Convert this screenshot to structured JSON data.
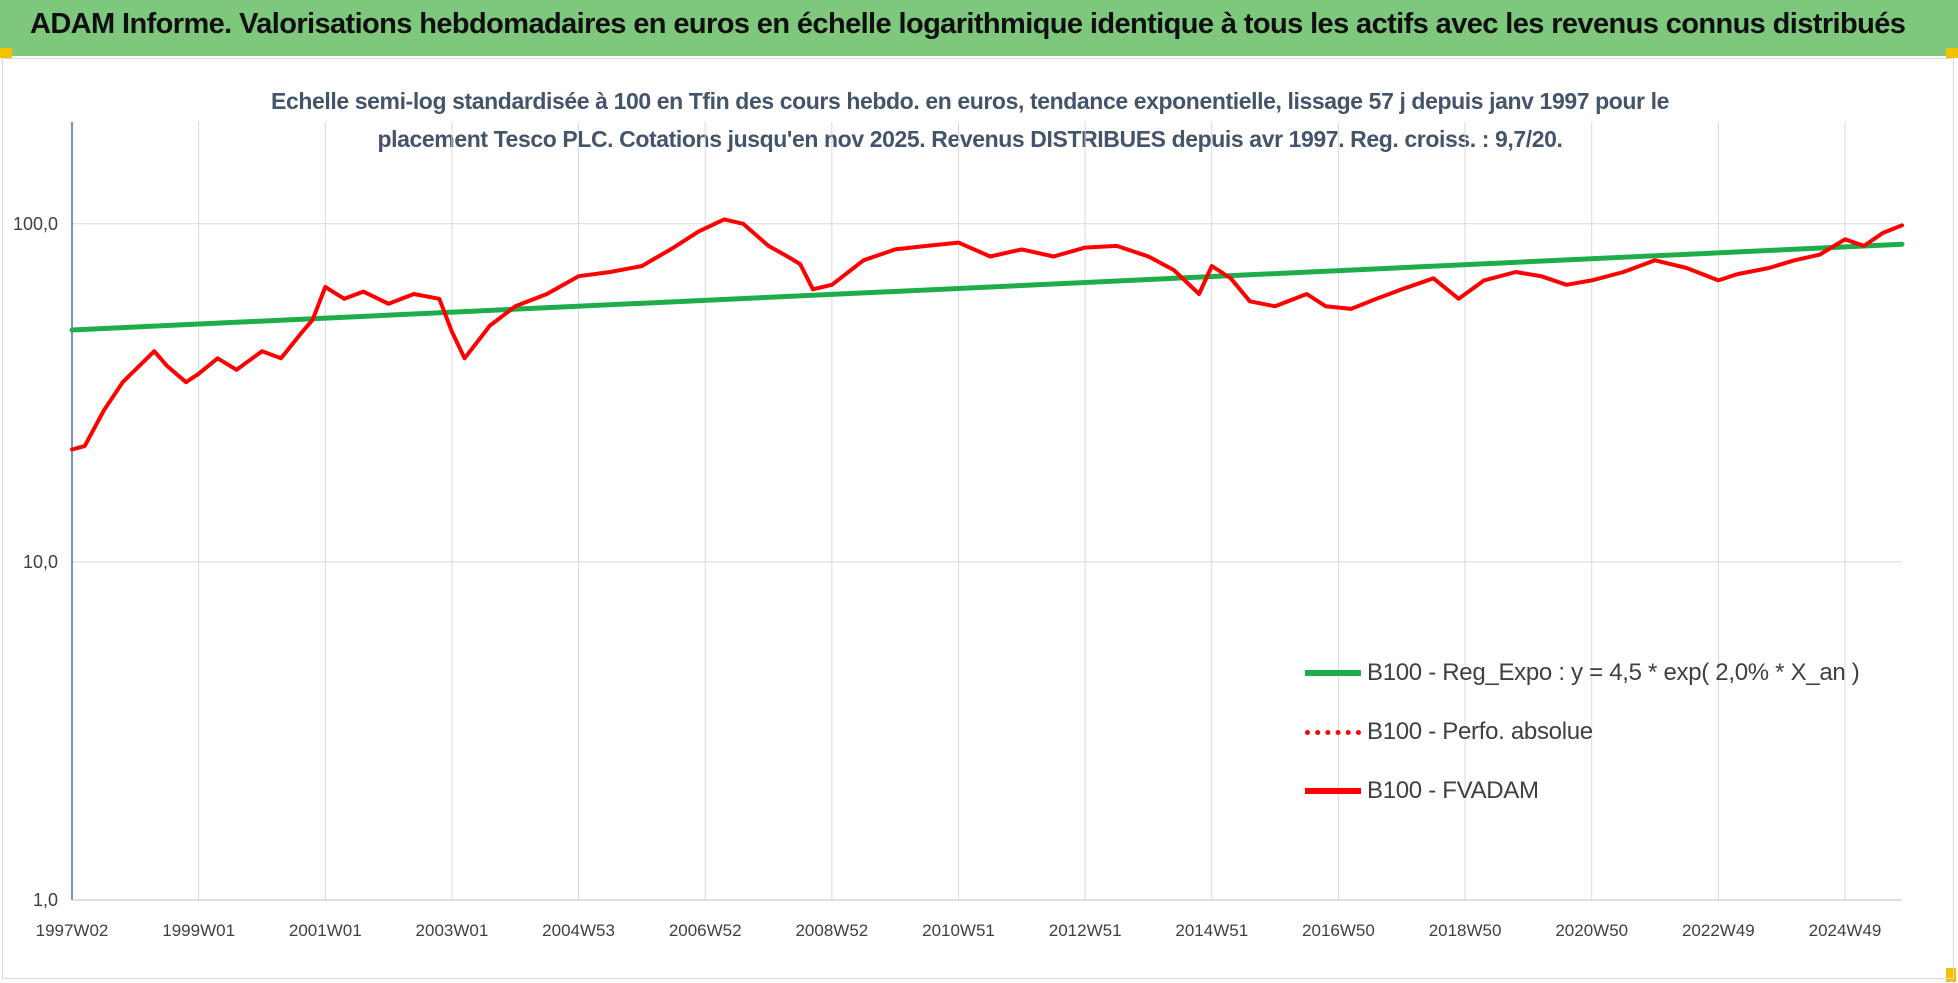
{
  "header": {
    "title": "ADAM Informe. Valorisations hebdomadaires en euros en échelle logarithmique identique à tous les actifs avec les revenus connus distribués"
  },
  "chart_data": {
    "type": "line",
    "title": "Echelle semi-log standardisée à 100 en Tfin des cours hebdo. en euros, tendance exponentielle, lissage 57 j depuis janv 1997 pour le placement Tesco PLC. Cotations jusqu'en nov 2025. Revenus DISTRIBUES depuis avr 1997. Reg. croiss. : 9,7/20.",
    "title_lines": [
      "Echelle semi-log standardisée à 100 en Tfin des cours hebdo. en euros, tendance exponentielle, lissage 57 j depuis janv 1997 pour le",
      "placement Tesco PLC. Cotations jusqu'en nov 2025. Revenus DISTRIBUES depuis avr 1997. Reg. croiss. : 9,7/20."
    ],
    "y_scale": "log",
    "ylim": [
      1,
      200
    ],
    "xlim": [
      1997.0,
      2025.9
    ],
    "yticks": [
      {
        "value": 1,
        "label": "1,0"
      },
      {
        "value": 10,
        "label": "10,0"
      },
      {
        "value": 100,
        "label": "100,0"
      }
    ],
    "xticks": [
      {
        "value": 1997.0,
        "label": "1997W02"
      },
      {
        "value": 1999.0,
        "label": "1999W01"
      },
      {
        "value": 2001.0,
        "label": "2001W01"
      },
      {
        "value": 2003.0,
        "label": "2003W01"
      },
      {
        "value": 2005.0,
        "label": "2004W53"
      },
      {
        "value": 2007.0,
        "label": "2006W52"
      },
      {
        "value": 2009.0,
        "label": "2008W52"
      },
      {
        "value": 2011.0,
        "label": "2010W51"
      },
      {
        "value": 2013.0,
        "label": "2012W51"
      },
      {
        "value": 2015.0,
        "label": "2014W51"
      },
      {
        "value": 2017.0,
        "label": "2016W50"
      },
      {
        "value": 2019.0,
        "label": "2018W50"
      },
      {
        "value": 2021.0,
        "label": "2020W50"
      },
      {
        "value": 2023.0,
        "label": "2022W49"
      },
      {
        "value": 2025.0,
        "label": "2024W49"
      }
    ],
    "grid": true,
    "legend_position": "right-bottom",
    "series": [
      {
        "name": "B100 - Reg_Expo : y = 4,5 * exp( 2,0% *  X_an )",
        "color": "#1fad4b",
        "style": "solid",
        "x": [
          1997.0,
          2025.9
        ],
        "y": [
          48.5,
          87.0
        ]
      },
      {
        "name": "B100 - Perfo. absolue",
        "color": "#ff0000",
        "style": "dotted",
        "x": [],
        "y": []
      },
      {
        "name": "B100 - FVADAM",
        "color": "#ff0000",
        "style": "solid",
        "x": [
          1997.0,
          1997.2,
          1997.5,
          1997.8,
          1998.0,
          1998.3,
          1998.5,
          1998.8,
          1999.0,
          1999.3,
          1999.6,
          2000.0,
          2000.3,
          2000.6,
          2000.8,
          2001.0,
          2001.3,
          2001.6,
          2002.0,
          2002.4,
          2002.8,
          2003.0,
          2003.2,
          2003.6,
          2004.0,
          2004.5,
          2005.0,
          2005.5,
          2006.0,
          2006.5,
          2006.9,
          2007.3,
          2007.6,
          2008.0,
          2008.3,
          2008.5,
          2008.7,
          2009.0,
          2009.5,
          2010.0,
          2010.5,
          2011.0,
          2011.5,
          2012.0,
          2012.5,
          2013.0,
          2013.5,
          2014.0,
          2014.4,
          2014.8,
          2015.0,
          2015.3,
          2015.6,
          2016.0,
          2016.5,
          2016.8,
          2017.2,
          2017.6,
          2018.0,
          2018.5,
          2018.9,
          2019.3,
          2019.8,
          2020.2,
          2020.6,
          2021.0,
          2021.5,
          2022.0,
          2022.5,
          2023.0,
          2023.3,
          2023.8,
          2024.2,
          2024.6,
          2025.0,
          2025.3,
          2025.6,
          2025.9
        ],
        "y": [
          21.5,
          22.0,
          28.0,
          34.0,
          37.0,
          42.0,
          38.0,
          34.0,
          36.0,
          40.0,
          37.0,
          42.0,
          40.0,
          47.0,
          52.0,
          65.0,
          60.0,
          63.0,
          58.0,
          62.0,
          60.0,
          48.0,
          40.0,
          50.0,
          57.0,
          62.0,
          70.0,
          72.0,
          75.0,
          85.0,
          95.0,
          103.0,
          100.0,
          86.0,
          80.0,
          76.0,
          64.0,
          66.0,
          78.0,
          84.0,
          86.0,
          88.0,
          80.0,
          84.0,
          80.0,
          85.0,
          86.0,
          80.0,
          73.0,
          62.0,
          75.0,
          69.0,
          59.0,
          57.0,
          62.0,
          57.0,
          56.0,
          60.0,
          64.0,
          69.0,
          60.0,
          68.0,
          72.0,
          70.0,
          66.0,
          68.0,
          72.0,
          78.0,
          74.0,
          68.0,
          71.0,
          74.0,
          78.0,
          81.0,
          90.0,
          86.0,
          94.0,
          99.0
        ]
      }
    ]
  }
}
